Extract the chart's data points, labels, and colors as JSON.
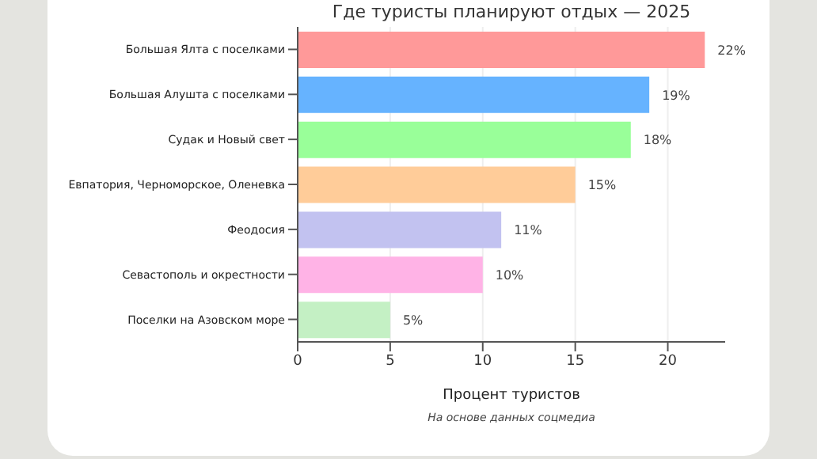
{
  "chart_data": {
    "type": "bar",
    "orientation": "horizontal",
    "title": "Где туристы планируют отдых — 2025",
    "xlabel": "Процент туристов",
    "categories": [
      "Большая Ялта с поселками",
      "Большая Алушта с поселками",
      "Судак и Новый свет",
      "Евпатория, Черноморское, Оленевка",
      "Феодосия",
      "Севастополь и окрестности",
      "Поселки на Азовском море"
    ],
    "values": [
      22,
      19,
      18,
      15,
      11,
      10,
      5
    ],
    "colors": [
      "#ff9999",
      "#66b3ff",
      "#99ff99",
      "#ffcc99",
      "#c2c2f0",
      "#ffb3e6",
      "#c4f0c4"
    ],
    "value_labels": [
      "22%",
      "19%",
      "18%",
      "15%",
      "11%",
      "10%",
      "5%"
    ],
    "xlim": [
      0,
      23.1
    ],
    "xticks": [
      0,
      5,
      10,
      15,
      20
    ],
    "grid": "x",
    "annotations": [
      "На основе данных соцмедиа"
    ]
  }
}
